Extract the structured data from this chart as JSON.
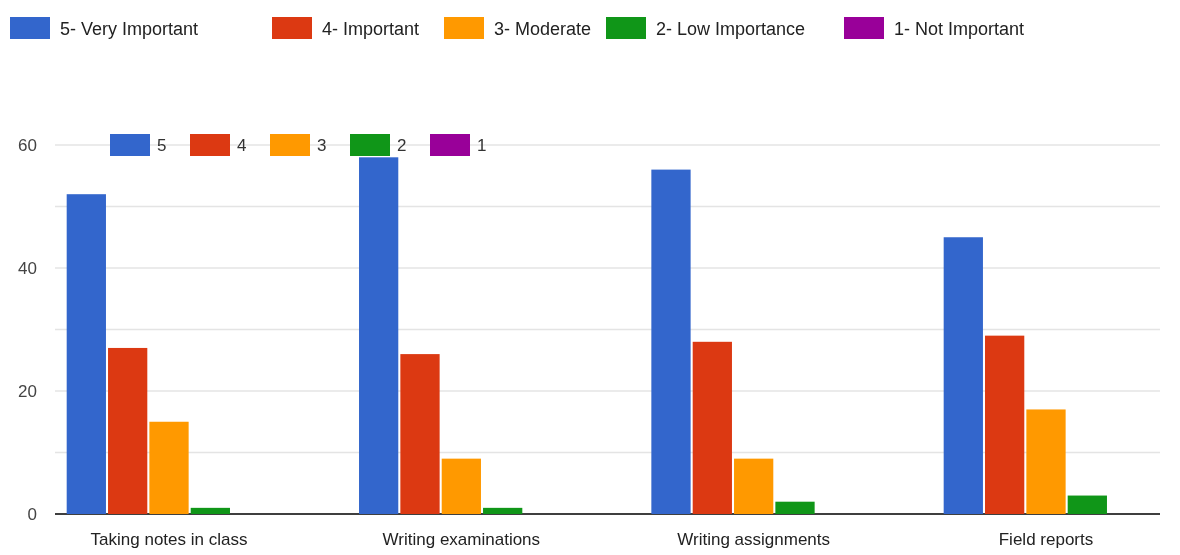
{
  "chart_data": {
    "type": "bar",
    "categories": [
      "Taking notes in class",
      "Writing examinations",
      "Writing assignments",
      "Field reports"
    ],
    "series": [
      {
        "name": "5",
        "color": "#3366cc",
        "values": [
          52,
          58,
          56,
          45
        ]
      },
      {
        "name": "4",
        "color": "#dc3912",
        "values": [
          27,
          26,
          28,
          29
        ]
      },
      {
        "name": "3",
        "color": "#ff9900",
        "values": [
          15,
          9,
          9,
          17
        ]
      },
      {
        "name": "2",
        "color": "#109618",
        "values": [
          1,
          1,
          2,
          3
        ]
      },
      {
        "name": "1",
        "color": "#990099",
        "values": [
          0,
          0,
          0,
          0
        ]
      }
    ],
    "annotations": [
      "5- Very Important",
      "4- Important",
      "3- Moderate",
      "2- Low Importance",
      "1- Not Important"
    ],
    "ylim": [
      0,
      60
    ],
    "yticks": [
      0,
      {
        "value": 10,
        "label": null
      },
      20,
      {
        "value": 30,
        "label": null
      },
      40,
      {
        "value": 50,
        "label": null
      },
      60
    ],
    "grid": "y",
    "legend": "top left"
  }
}
